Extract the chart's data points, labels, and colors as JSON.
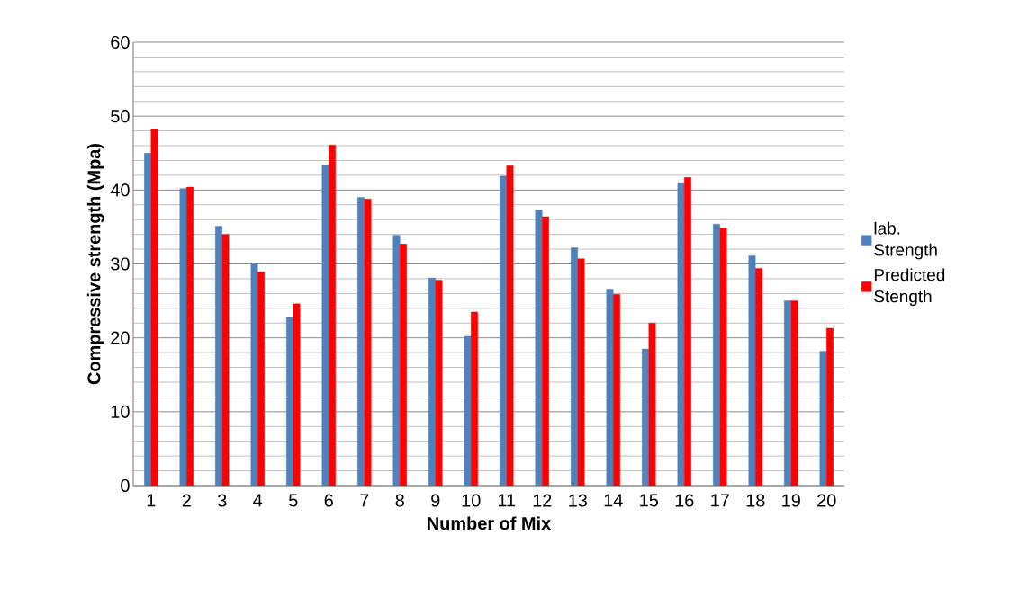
{
  "chart_data": {
    "type": "bar",
    "xlabel": "Number of Mix",
    "ylabel": "Compressive strength (Mpa)",
    "categories": [
      "1",
      "2",
      "3",
      "4",
      "5",
      "6",
      "7",
      "8",
      "9",
      "10",
      "11",
      "12",
      "13",
      "14",
      "15",
      "16",
      "17",
      "18",
      "19",
      "20"
    ],
    "series": [
      {
        "name": "lab. Strength",
        "color": "#4f81bd",
        "values": [
          45.0,
          40.2,
          35.1,
          30.1,
          22.8,
          43.4,
          39.0,
          33.9,
          28.1,
          20.2,
          41.9,
          37.3,
          32.2,
          26.6,
          18.5,
          41.0,
          35.4,
          31.1,
          25.0,
          18.2
        ]
      },
      {
        "name": "Predicted Stength",
        "color": "#ff0000",
        "values": [
          48.2,
          40.4,
          34.0,
          28.9,
          24.6,
          46.1,
          38.8,
          32.7,
          27.8,
          23.5,
          43.3,
          36.4,
          30.7,
          25.9,
          22.0,
          41.7,
          34.9,
          29.4,
          25.0,
          21.3
        ]
      }
    ],
    "ylim": [
      0,
      60
    ],
    "yticks": [
      0,
      10,
      20,
      30,
      40,
      50,
      60
    ],
    "grid": "y",
    "legend": "right"
  }
}
